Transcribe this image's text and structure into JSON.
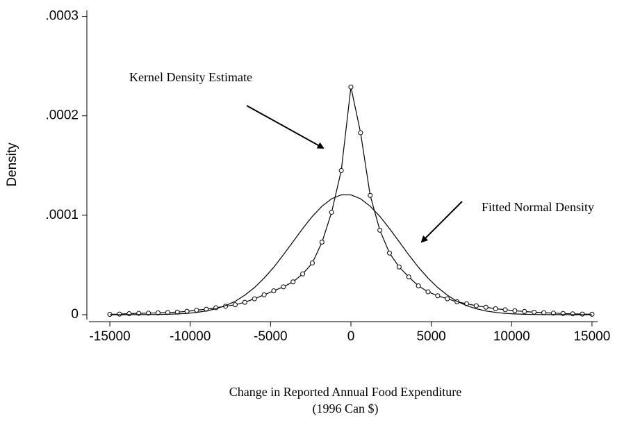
{
  "chart_data": {
    "type": "line",
    "x_label": [
      "Change in Reported Annual Food Expenditure",
      "(1996 Can $)"
    ],
    "y_label": "Density",
    "x": [
      -15000,
      -14400,
      -13800,
      -13200,
      -12600,
      -12000,
      -11400,
      -10800,
      -10200,
      -9600,
      -9000,
      -8400,
      -7800,
      -7200,
      -6600,
      -6000,
      -5400,
      -4800,
      -4200,
      -3600,
      -3000,
      -2400,
      -1800,
      -1200,
      -600,
      0,
      600,
      1200,
      1800,
      2400,
      3000,
      3600,
      4200,
      4800,
      5400,
      6000,
      6600,
      7200,
      7800,
      8400,
      9000,
      9600,
      10200,
      10800,
      11400,
      12000,
      12600,
      13200,
      13800,
      14400,
      15000
    ],
    "series": [
      {
        "name": "Kernel Density Estimate",
        "color": "#000000",
        "markers": true,
        "values": [
          3e-07,
          6e-07,
          1e-06,
          1.4e-06,
          1.6e-06,
          1.8e-06,
          2.2e-06,
          2.6e-06,
          3.4e-06,
          4.5e-06,
          5.5e-06,
          7e-06,
          8.5e-06,
          1e-05,
          1.25e-05,
          1.6e-05,
          2e-05,
          2.4e-05,
          2.8e-05,
          3.3e-05,
          4.1e-05,
          5.2e-05,
          7.3e-05,
          0.000103,
          0.000145,
          0.000229,
          0.000183,
          0.00012,
          8.5e-05,
          6.2e-05,
          4.8e-05,
          3.8e-05,
          2.9e-05,
          2.3e-05,
          1.9e-05,
          1.6e-05,
          1.3e-05,
          1.1e-05,
          9e-06,
          7.5e-06,
          6e-06,
          5e-06,
          4e-06,
          3.2e-06,
          2.5e-06,
          2e-06,
          1.6e-06,
          1.2e-06,
          9e-07,
          6e-07,
          4e-07
        ]
      },
      {
        "name": "Fitted Normal Density",
        "color": "#000000",
        "markers": false,
        "values": [
          1e-08,
          1e-08,
          3e-08,
          6e-08,
          1.2e-07,
          2.3e-07,
          4.2e-07,
          7.7e-07,
          1.34e-06,
          2.28e-06,
          3.75e-06,
          5.97e-06,
          9.16e-06,
          1.35e-05,
          1.96e-05,
          2.73e-05,
          3.68e-05,
          4.77e-05,
          6.02e-05,
          7.34e-05,
          8.66e-05,
          9.89e-05,
          0.0001091,
          0.0001166,
          0.0001205,
          0.0001205,
          0.0001166,
          0.0001091,
          9.89e-05,
          8.66e-05,
          7.34e-05,
          6.02e-05,
          4.77e-05,
          3.68e-05,
          2.73e-05,
          1.96e-05,
          1.35e-05,
          9.16e-06,
          5.97e-06,
          3.75e-06,
          2.28e-06,
          1.34e-06,
          7.7e-07,
          4.2e-07,
          2.3e-07,
          1.2e-07,
          6e-08,
          3e-08,
          1e-08,
          1e-08,
          0.0
        ]
      }
    ],
    "xlim": [
      -16300,
      15350
    ],
    "ylim": [
      -7e-06,
      0.000306
    ],
    "xticks": [
      -15000,
      -10000,
      -5000,
      0,
      5000,
      10000,
      15000
    ],
    "yticks": [
      0,
      {
        "value": 0.0001,
        "label": ".0001"
      },
      {
        "value": 0.0002,
        "label": ".0002"
      },
      {
        "value": 0.0003,
        "label": ".0003"
      }
    ],
    "grid": false
  }
}
